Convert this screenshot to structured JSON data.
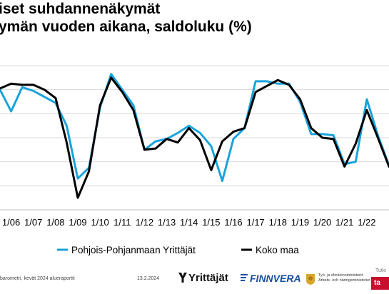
{
  "title": {
    "line1": "iset suhdannenäkymät",
    "line2": "ymän vuoden aikana, saldoluku (%)"
  },
  "footer": {
    "source": "barometri, kevät 2024 alueraportti",
    "date": "13.2.2024"
  },
  "logos": {
    "yrittajat": "Yrittäjät",
    "finnvera": "FINNVERA",
    "tem_line1": "Työ- ja elinkeinoministeriö",
    "tem_line2": "Arbets- och näringsministeriet",
    "tutkimus": "Tutki",
    "tutkimus_box": "ta"
  },
  "colors": {
    "series_pohjois": "#1aa3da",
    "series_koko": "#000000",
    "grid": "#d9d9d9"
  },
  "chart_data": {
    "type": "line",
    "categories": [
      "1/06",
      "1/07",
      "1/08",
      "1/09",
      "1/10",
      "1/11",
      "1/12",
      "1/13",
      "1/14",
      "1/15",
      "1/16",
      "1/17",
      "1/18",
      "1/19",
      "1/20",
      "1/21",
      "1/22"
    ],
    "x_start": 2005.5,
    "x_end": 2023.0,
    "ylim": [
      -80,
      40
    ],
    "y_gridlines": [
      -80,
      -60,
      -40,
      -20,
      0,
      20,
      40
    ],
    "grid": true,
    "legend_position": "bottom",
    "series": [
      {
        "name": "Pohjois-Pohjanmaan Yrittäjät",
        "color": "#1aa3da",
        "points": [
          [
            2005.5,
            20
          ],
          [
            2006.0,
            2
          ],
          [
            2006.5,
            22
          ],
          [
            2007.0,
            19
          ],
          [
            2007.5,
            14
          ],
          [
            2008.0,
            9
          ],
          [
            2008.5,
            -10
          ],
          [
            2009.0,
            -54
          ],
          [
            2009.5,
            -45
          ],
          [
            2010.0,
            5
          ],
          [
            2010.5,
            33
          ],
          [
            2011.0,
            20
          ],
          [
            2011.5,
            7
          ],
          [
            2012.0,
            -30
          ],
          [
            2012.5,
            -23
          ],
          [
            2013.0,
            -21
          ],
          [
            2013.5,
            -16
          ],
          [
            2014.0,
            -10
          ],
          [
            2014.5,
            -16
          ],
          [
            2015.0,
            -27
          ],
          [
            2015.5,
            -56
          ],
          [
            2016.0,
            -21
          ],
          [
            2016.5,
            -12
          ],
          [
            2017.0,
            27
          ],
          [
            2017.5,
            27
          ],
          [
            2018.0,
            25
          ],
          [
            2018.5,
            25
          ],
          [
            2019.0,
            10
          ],
          [
            2019.5,
            -17
          ],
          [
            2020.0,
            -17
          ],
          [
            2020.5,
            -18
          ],
          [
            2021.0,
            -42
          ],
          [
            2021.5,
            -40
          ],
          [
            2022.0,
            12
          ],
          [
            2022.5,
            -18
          ],
          [
            2023.0,
            -43
          ]
        ]
      },
      {
        "name": "Koko maa",
        "color": "#000000",
        "points": [
          [
            2005.5,
            21
          ],
          [
            2006.0,
            25
          ],
          [
            2006.5,
            24
          ],
          [
            2007.0,
            24
          ],
          [
            2007.5,
            20
          ],
          [
            2008.0,
            13
          ],
          [
            2008.5,
            -24
          ],
          [
            2009.0,
            -70
          ],
          [
            2009.5,
            -48
          ],
          [
            2010.0,
            7
          ],
          [
            2010.5,
            30
          ],
          [
            2011.0,
            18
          ],
          [
            2011.5,
            3
          ],
          [
            2012.0,
            -30
          ],
          [
            2012.5,
            -29
          ],
          [
            2013.0,
            -21
          ],
          [
            2013.5,
            -24
          ],
          [
            2014.0,
            -12
          ],
          [
            2014.5,
            -22
          ],
          [
            2015.0,
            -47
          ],
          [
            2015.5,
            -23
          ],
          [
            2016.0,
            -15
          ],
          [
            2016.5,
            -12
          ],
          [
            2017.0,
            18
          ],
          [
            2017.5,
            23
          ],
          [
            2018.0,
            28
          ],
          [
            2018.5,
            24
          ],
          [
            2019.0,
            12
          ],
          [
            2019.5,
            -12
          ],
          [
            2020.0,
            -20
          ],
          [
            2020.5,
            -21
          ],
          [
            2021.0,
            -44
          ],
          [
            2021.5,
            -25
          ],
          [
            2022.0,
            3
          ],
          [
            2022.5,
            -20
          ],
          [
            2023.0,
            -44
          ]
        ]
      }
    ]
  }
}
